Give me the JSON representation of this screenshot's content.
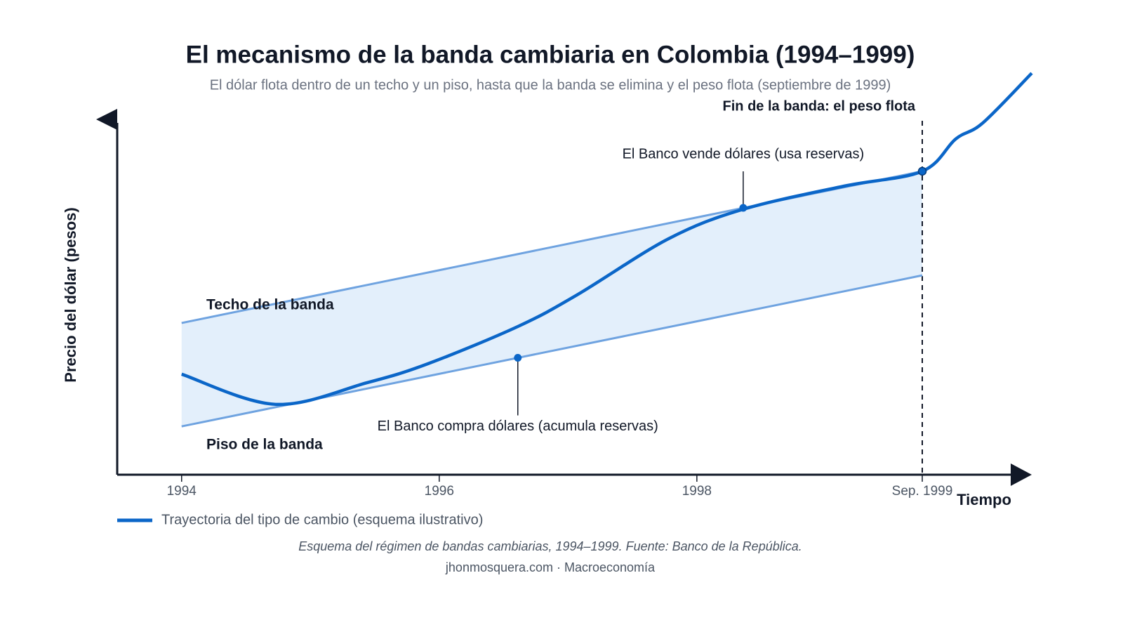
{
  "chart_data": {
    "type": "line",
    "title": "El mecanismo de la banda cambiaria en Colombia (1994–1999)",
    "subtitle": "El dólar flota dentro de un techo y un piso, hasta que la banda se elimina y el peso flota (septiembre de 1999)",
    "x_label": "Tiempo",
    "y_label": "Precio del dólar (pesos)",
    "xlim": [
      1993.5,
      2000.6
    ],
    "ylim": [
      0,
      100
    ],
    "xticks": [
      1994,
      1996,
      1998,
      {
        "value": 1999.75,
        "label": "Sep. 1999"
      }
    ],
    "band_fill": "#e3effb",
    "series": [
      {
        "name": "Techo de la banda",
        "color": "#6fa3e0",
        "x": [
          1994,
          1999.75
        ],
        "values": [
          42.7,
          85.4
        ]
      },
      {
        "name": "Piso de la banda",
        "color": "#6fa3e0",
        "x": [
          1994,
          1999.75
        ],
        "values": [
          13.6,
          56.1
        ]
      },
      {
        "name": "Trayectoria del tipo de cambio (esquema ilustrativo)",
        "color": "#0b66c8",
        "x": [
          1994,
          1994.73,
          1995.44,
          1995.91,
          1996.61,
          1997.07,
          1997.78,
          1998.36,
          1999.14,
          1999.75,
          2000.01,
          2000.22,
          2000.6
        ],
        "values": [
          28.3,
          19.8,
          25.9,
          31.2,
          41.7,
          50.6,
          66.4,
          74.7,
          81.2,
          85.4,
          94.5,
          99.0,
          113.0
        ]
      }
    ],
    "vline": {
      "x": 1999.75,
      "label": "Fin de la banda: el peso flota"
    },
    "annotations": [
      {
        "text": "El Banco compra dólares (acumula reservas)",
        "x": 1996.61,
        "y": 32.9
      },
      {
        "text": "El Banco vende dólares (usa reservas)",
        "x": 1998.36,
        "y": 75.1
      }
    ],
    "caption": "Esquema del régimen de bandas cambiarias, 1994–1999. Fuente: Banco de la República.",
    "source": "jhonmosquera.com · Macroeconomía"
  }
}
